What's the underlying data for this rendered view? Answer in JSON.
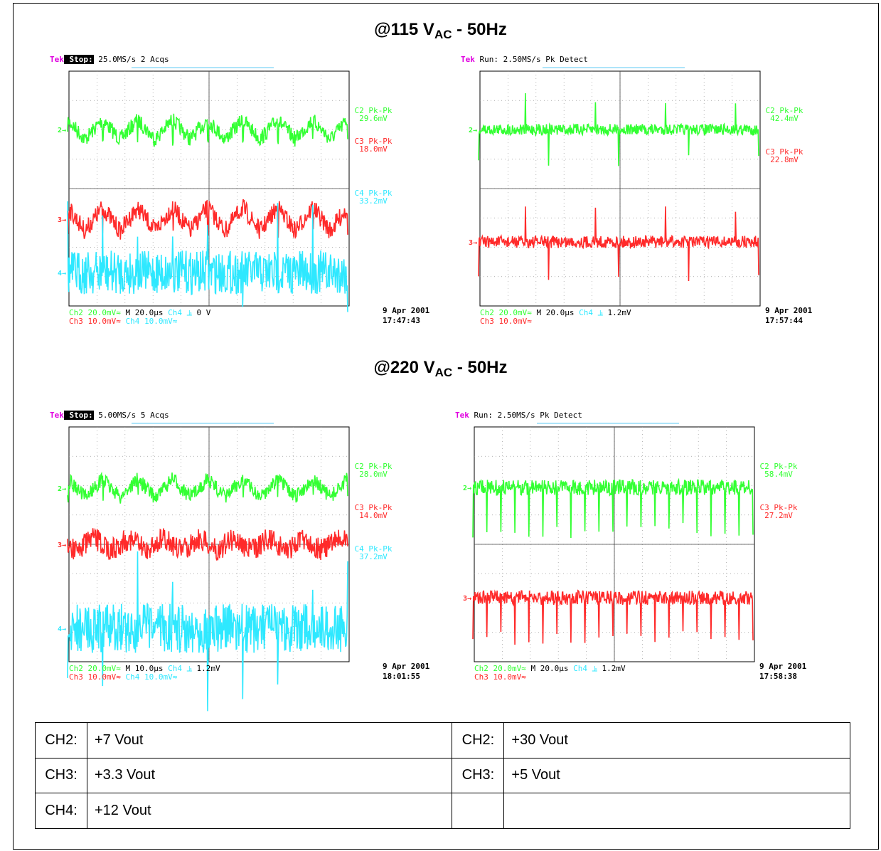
{
  "headers": [
    {
      "prefix": "@115 V",
      "sub": "AC",
      "suffix": " - 50Hz"
    },
    {
      "prefix": "@220 V",
      "sub": "AC",
      "suffix": " - 50Hz"
    }
  ],
  "scopes": [
    {
      "brand": "Tek",
      "mode": "Stop:",
      "rate": "25.0MS/s",
      "acq": "2 Acqs",
      "measurements": [
        {
          "label": "C2 Pk-Pk",
          "value": "29.6mV",
          "color": "#33ff33"
        },
        {
          "label": "C3 Pk-Pk",
          "value": "18.0mV",
          "color": "#ff2a2a"
        },
        {
          "label": "C4 Pk-Pk",
          "value": "33.2mV",
          "color": "#2ee8ff"
        }
      ],
      "bottom": {
        "ch3": "Ch3  10.0mV≈",
        "ch2": "Ch2  20.0mV≈",
        "ch4": "Ch4  10.0mV≈",
        "time": "M 20.0µs",
        "trig": "Ch4 ⫡",
        "level": "0 V"
      },
      "date": "9 Apr 2001",
      "time": "17:47:43"
    },
    {
      "brand": "Tek",
      "mode": "Run:",
      "rate": "2.50MS/s",
      "acq": "Pk Detect",
      "measurements": [
        {
          "label": "C2 Pk-Pk",
          "value": "42.4mV",
          "color": "#33ff33"
        },
        {
          "label": "C3 Pk-Pk",
          "value": "22.8mV",
          "color": "#ff2a2a"
        }
      ],
      "bottom": {
        "ch3": "Ch3  10.0mV≈",
        "ch2": "Ch2  20.0mV≈",
        "ch4": "",
        "time": "M 20.0µs",
        "trig": "Ch4 ⫡",
        "level": "1.2mV"
      },
      "date": "9 Apr 2001",
      "time": "17:57:44"
    },
    {
      "brand": "Tek",
      "mode": "Stop:",
      "rate": "5.00MS/s",
      "acq": "5 Acqs",
      "measurements": [
        {
          "label": "C2 Pk-Pk",
          "value": "28.0mV",
          "color": "#33ff33"
        },
        {
          "label": "C3 Pk-Pk",
          "value": "14.0mV",
          "color": "#ff2a2a"
        },
        {
          "label": "C4 Pk-Pk",
          "value": "37.2mV",
          "color": "#2ee8ff"
        }
      ],
      "bottom": {
        "ch3": "Ch3  10.0mV≈",
        "ch2": "Ch2  20.0mV≈",
        "ch4": "Ch4  10.0mV≈",
        "time": "M 10.0µs",
        "trig": "Ch4 ⫡",
        "level": "1.2mV"
      },
      "date": "9 Apr 2001",
      "time": "18:01:55"
    },
    {
      "brand": "Tek",
      "mode": "Run:",
      "rate": "2.50MS/s",
      "acq": "Pk Detect",
      "measurements": [
        {
          "label": "C2 Pk-Pk",
          "value": "58.4mV",
          "color": "#33ff33"
        },
        {
          "label": "C3 Pk-Pk",
          "value": "27.2mV",
          "color": "#ff2a2a"
        }
      ],
      "bottom": {
        "ch3": "Ch3  10.0mV≈",
        "ch2": "Ch2  20.0mV≈",
        "ch4": "",
        "time": "M 20.0µs",
        "trig": "Ch4 ⫡",
        "level": "1.2mV"
      },
      "date": "9 Apr 2001",
      "time": "17:58:38"
    }
  ],
  "legend": [
    {
      "k1": "CH2:",
      "v1": "+7 Vout",
      "k2": "CH2:",
      "v2": "+30 Vout"
    },
    {
      "k1": "CH3:",
      "v1": "+3.3 Vout",
      "k2": "CH3:",
      "v2": "+5 Vout"
    },
    {
      "k1": "CH4:",
      "v1": "+12 Vout",
      "k2": "",
      "v2": ""
    }
  ],
  "colors": {
    "ch2": "#33ff33",
    "ch3": "#ff2a2a",
    "ch4": "#2ee8ff",
    "brand": "#e000e0"
  },
  "chart_data": [
    {
      "type": "line",
      "title": "",
      "x_divisions": 10,
      "y_divisions": 8,
      "series": [
        {
          "name": "C2 Pk-Pk",
          "pk_pk_mV": 29.6,
          "scale": "20.0mV/div",
          "shape": "sawtooth-ripple",
          "cycles": 8
        },
        {
          "name": "C3 Pk-Pk",
          "pk_pk_mV": 18.0,
          "scale": "10.0mV/div",
          "shape": "sawtooth-ripple",
          "cycles": 8
        },
        {
          "name": "C4 Pk-Pk",
          "pk_pk_mV": 33.2,
          "scale": "10.0mV/div",
          "shape": "noise-spikes",
          "cycles": 8
        }
      ]
    },
    {
      "type": "line",
      "title": "",
      "x_divisions": 10,
      "y_divisions": 8,
      "series": [
        {
          "name": "C2 Pk-Pk",
          "pk_pk_mV": 42.4,
          "scale": "20.0mV/div",
          "shape": "switching-spikes",
          "spikes": 12
        },
        {
          "name": "C3 Pk-Pk",
          "pk_pk_mV": 22.8,
          "scale": "10.0mV/div",
          "shape": "switching-spikes",
          "spikes": 12
        }
      ]
    },
    {
      "type": "line",
      "title": "",
      "x_divisions": 10,
      "y_divisions": 8,
      "series": [
        {
          "name": "C2 Pk-Pk",
          "pk_pk_mV": 28.0,
          "scale": "20.0mV/div",
          "shape": "sawtooth-ripple",
          "cycles": 8
        },
        {
          "name": "C3 Pk-Pk",
          "pk_pk_mV": 14.0,
          "scale": "10.0mV/div",
          "shape": "noise-ripple",
          "cycles": 8
        },
        {
          "name": "C4 Pk-Pk",
          "pk_pk_mV": 37.2,
          "scale": "10.0mV/div",
          "shape": "noise-spikes",
          "spikes": 16
        }
      ]
    },
    {
      "type": "line",
      "title": "",
      "x_divisions": 10,
      "y_divisions": 8,
      "series": [
        {
          "name": "C2 Pk-Pk",
          "pk_pk_mV": 58.4,
          "scale": "20.0mV/div",
          "shape": "switching-spikes",
          "spikes": 20
        },
        {
          "name": "C3 Pk-Pk",
          "pk_pk_mV": 27.2,
          "scale": "10.0mV/div",
          "shape": "switching-spikes",
          "spikes": 20
        }
      ]
    }
  ]
}
